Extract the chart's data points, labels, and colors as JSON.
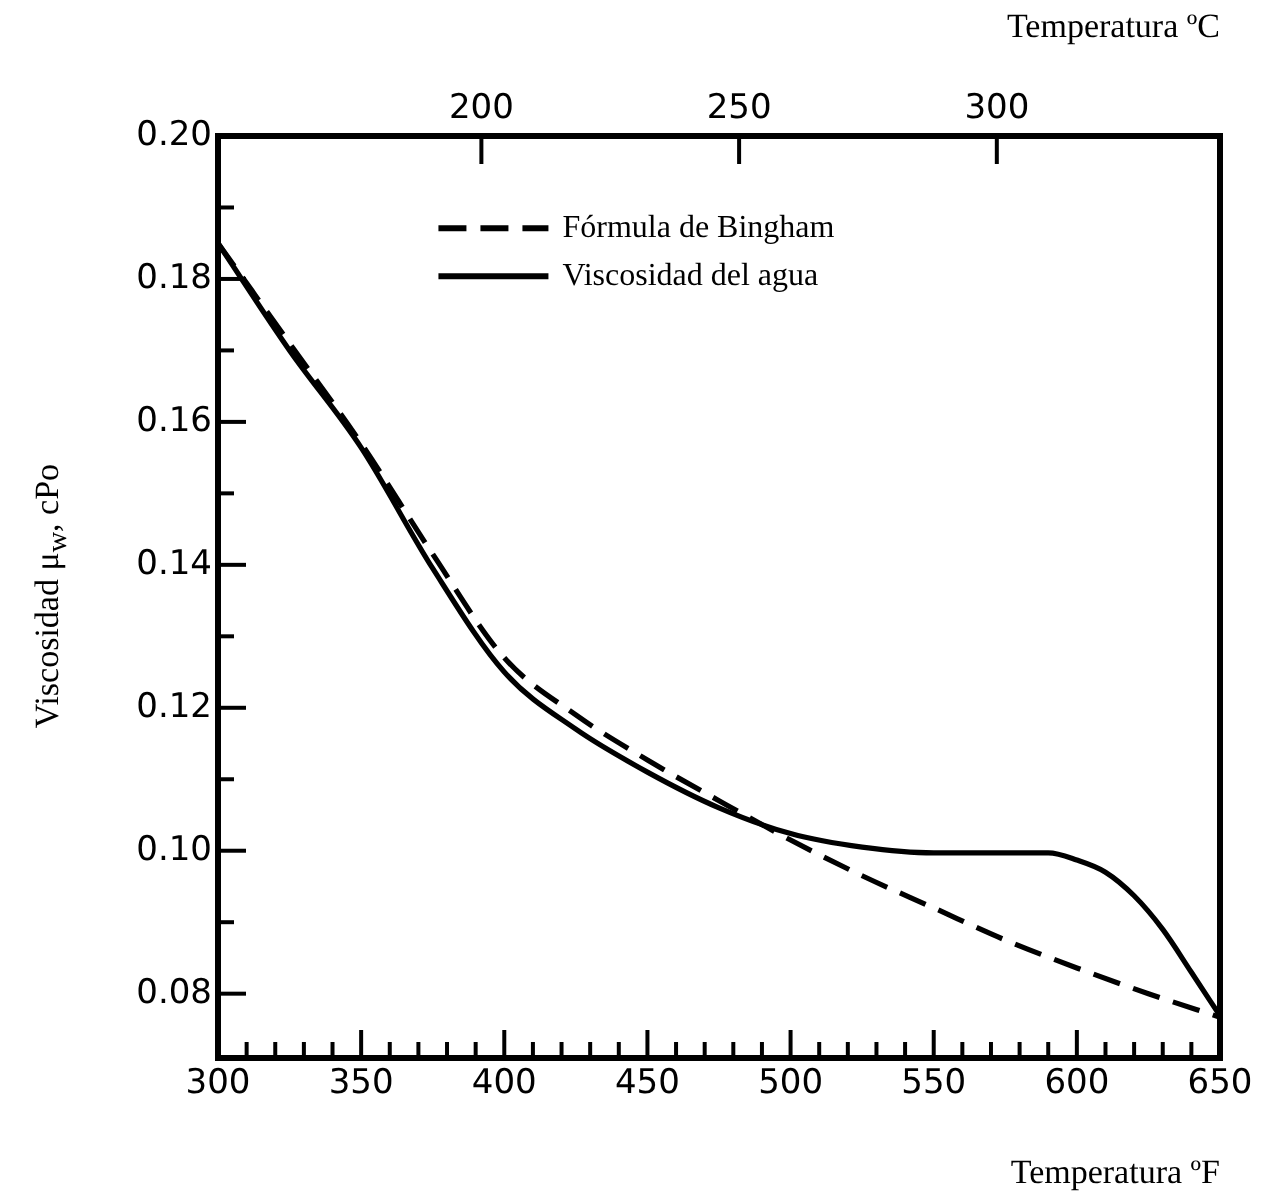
{
  "chart_data": {
    "type": "line",
    "xlabel": "Temperatura ºF",
    "x2label": "Temperatura ºC",
    "ylabel": "Viscosidad  μ$_{w}$, cPo",
    "xlim": [
      300,
      650
    ],
    "xticks": [
      300,
      {
        "value": 310,
        "label": null
      },
      {
        "value": 320,
        "label": null
      },
      {
        "value": 330,
        "label": null
      },
      {
        "value": 340,
        "label": null
      },
      350,
      {
        "value": 360,
        "label": null
      },
      {
        "value": 370,
        "label": null
      },
      {
        "value": 380,
        "label": null
      },
      {
        "value": 390,
        "label": null
      },
      400,
      {
        "value": 410,
        "label": null
      },
      {
        "value": 420,
        "label": null
      },
      {
        "value": 430,
        "label": null
      },
      {
        "value": 440,
        "label": null
      },
      450,
      {
        "value": 460,
        "label": null
      },
      {
        "value": 470,
        "label": null
      },
      {
        "value": 480,
        "label": null
      },
      {
        "value": 490,
        "label": null
      },
      500,
      {
        "value": 510,
        "label": null
      },
      {
        "value": 520,
        "label": null
      },
      {
        "value": 530,
        "label": null
      },
      {
        "value": 540,
        "label": null
      },
      550,
      {
        "value": 560,
        "label": null
      },
      {
        "value": 570,
        "label": null
      },
      {
        "value": 580,
        "label": null
      },
      {
        "value": 590,
        "label": null
      },
      600,
      {
        "value": 610,
        "label": null
      },
      {
        "value": 620,
        "label": null
      },
      {
        "value": 630,
        "label": null
      },
      {
        "value": 640,
        "label": null
      },
      650
    ],
    "x2lim": [
      148.9,
      343.3
    ],
    "x2ticks": [
      200,
      250,
      300
    ],
    "ylim": [
      0.071,
      0.2
    ],
    "yticks": [
      {
        "value": 0.08,
        "label": "0.08"
      },
      {
        "value": 0.09,
        "label": null
      },
      {
        "value": 0.1,
        "label": "0.10"
      },
      {
        "value": 0.11,
        "label": null
      },
      {
        "value": 0.12,
        "label": "0.12"
      },
      {
        "value": 0.13,
        "label": null
      },
      {
        "value": 0.14,
        "label": "0.14"
      },
      {
        "value": 0.15,
        "label": null
      },
      {
        "value": 0.16,
        "label": "0.16"
      },
      {
        "value": 0.17,
        "label": null
      },
      {
        "value": 0.18,
        "label": "0.18"
      },
      {
        "value": 0.19,
        "label": null
      },
      {
        "value": 0.2,
        "label": "0.20"
      }
    ],
    "grid": false,
    "legend": "top left",
    "marker": "none",
    "series": [
      {
        "name": "Fórmula de Bingham",
        "color": "#000000",
        "line_style": "dashed",
        "x": [
          300,
          325,
          350,
          375,
          400,
          425,
          450,
          475,
          500,
          525,
          550,
          575,
          600,
          625,
          650
        ],
        "values": [
          0.185,
          0.171,
          0.157,
          0.1415,
          0.127,
          0.119,
          0.1127,
          0.107,
          0.1015,
          0.0965,
          0.092,
          0.0875,
          0.0836,
          0.08,
          0.0767
        ]
      },
      {
        "name": "Viscosidad del agua",
        "color": "#000000",
        "line_style": "solid",
        "x": [
          300,
          325,
          350,
          375,
          400,
          425,
          450,
          475,
          500,
          525,
          550,
          575,
          590,
          600,
          610,
          620,
          630,
          640,
          650
        ],
        "values": [
          0.185,
          0.17,
          0.1564,
          0.1395,
          0.125,
          0.117,
          0.111,
          0.106,
          0.1024,
          0.1005,
          0.0997,
          0.0997,
          0.0997,
          0.0987,
          0.097,
          0.0937,
          0.089,
          0.083,
          0.0769
        ]
      }
    ]
  }
}
